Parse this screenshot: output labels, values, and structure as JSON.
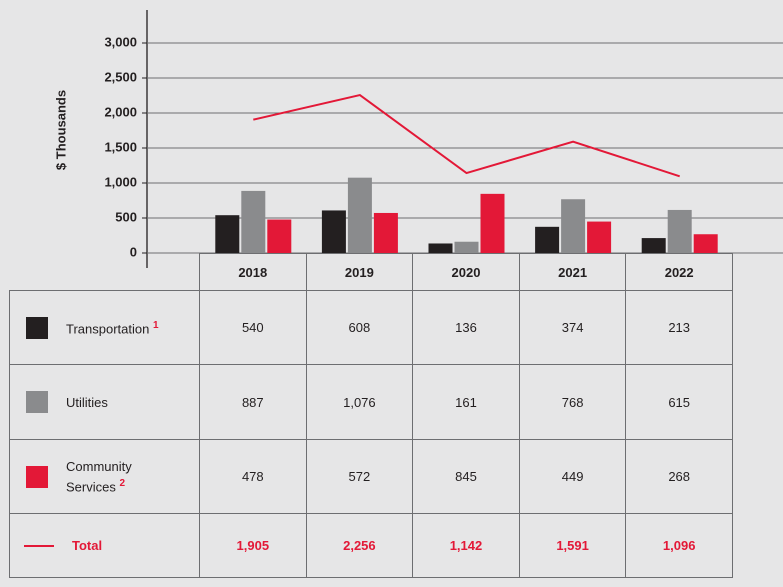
{
  "chart_data": {
    "type": "bar",
    "y_label": "$ Thousands",
    "categories": [
      "2018",
      "2019",
      "2020",
      "2021",
      "2022"
    ],
    "ylim": [
      0,
      3000
    ],
    "yticks": [
      0,
      500,
      {
        "value": 1000,
        "label": "1,000"
      },
      {
        "value": 1500,
        "label": "1,500"
      },
      {
        "value": 2000,
        "label": "2,000"
      },
      {
        "value": 2500,
        "label": "2,500"
      },
      {
        "value": 3000,
        "label": "3,000"
      }
    ],
    "grid": true,
    "series": [
      {
        "name": "Transportation",
        "note": "1",
        "color": "#231f20",
        "values": [
          540,
          608,
          136,
          374,
          213
        ],
        "value_labels": [
          "540",
          "608",
          "136",
          "374",
          "213"
        ]
      },
      {
        "name": "Utilities",
        "color": "#8a8b8d",
        "values": [
          887,
          1076,
          161,
          768,
          615
        ],
        "value_labels": [
          "887",
          "1,076",
          "161",
          "768",
          "615"
        ]
      },
      {
        "name": "Community Services",
        "note": "2",
        "color": "#e31837",
        "values": [
          478,
          572,
          845,
          449,
          268
        ],
        "value_labels": [
          "478",
          "572",
          "845",
          "449",
          "268"
        ]
      },
      {
        "name": "Total",
        "type": "line",
        "color": "#e31837",
        "values": [
          1905,
          2256,
          1142,
          1591,
          1096
        ],
        "value_labels": [
          "1,905",
          "2,256",
          "1,142",
          "1,591",
          "1,096"
        ]
      }
    ]
  }
}
